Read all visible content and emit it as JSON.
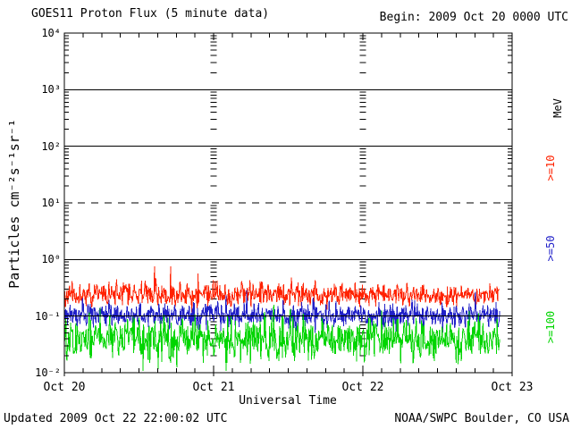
{
  "footer": {
    "updated": "Updated 2009 Oct 22 22:00:02 UTC",
    "source": "NOAA/SWPC Boulder, CO USA"
  },
  "chart_data": {
    "type": "line",
    "title": "GOES11 Proton Flux (5 minute data)",
    "begin_label": "Begin: 2009 Oct 20 0000 UTC",
    "xlabel": "Universal Time",
    "ylabel": "Particles cm⁻²s⁻¹sr⁻¹",
    "right_axis_label": "MeV",
    "y_scale": "log",
    "ylim": [
      0.01,
      10000
    ],
    "y_tick_labels": [
      "10⁴",
      "10³",
      "10²",
      "10¹",
      "10⁰",
      "10⁻¹",
      "10⁻²"
    ],
    "y_tick_values": [
      10000,
      1000,
      100,
      10,
      1,
      0.1,
      0.01
    ],
    "x_range_hours": 72,
    "x_tick_hours": [
      0,
      24,
      48,
      72
    ],
    "x_tick_labels": [
      "Oct 20",
      "Oct 21",
      "Oct 22",
      "Oct 23"
    ],
    "x_minor_tick_hours": 3,
    "cadence_minutes": 5,
    "data_end_hour": 70,
    "grid": {
      "solid_lines_at": [
        1000,
        100,
        1,
        0.1
      ],
      "dashed_line_at": 10,
      "vertical_dash_columns_at_hours": [
        24,
        48
      ]
    },
    "series": [
      {
        "name": ">=10 MeV",
        "label": ">=10",
        "color": "#ff2200",
        "median_flux": 0.24,
        "typical_min": 0.14,
        "typical_max": 0.45,
        "peak": 0.75,
        "log10_mean": -0.62,
        "log10_sigma": 0.1,
        "spike_prob": 0.008,
        "seed": 11
      },
      {
        "name": ">=50 MeV",
        "label": ">=50",
        "color": "#2020c8",
        "median_flux": 0.105,
        "typical_min": 0.06,
        "typical_max": 0.2,
        "peak": 0.3,
        "log10_mean": -0.98,
        "log10_sigma": 0.11,
        "spike_prob": 0.004,
        "seed": 52
      },
      {
        "name": ">=100 MeV",
        "label": ">=100",
        "color": "#00d500",
        "median_flux": 0.045,
        "typical_min": 0.02,
        "typical_max": 0.11,
        "peak": 0.13,
        "log10_mean": -1.4,
        "log10_sigma": 0.19,
        "spike_prob": 0.0,
        "seed": 103
      }
    ]
  }
}
